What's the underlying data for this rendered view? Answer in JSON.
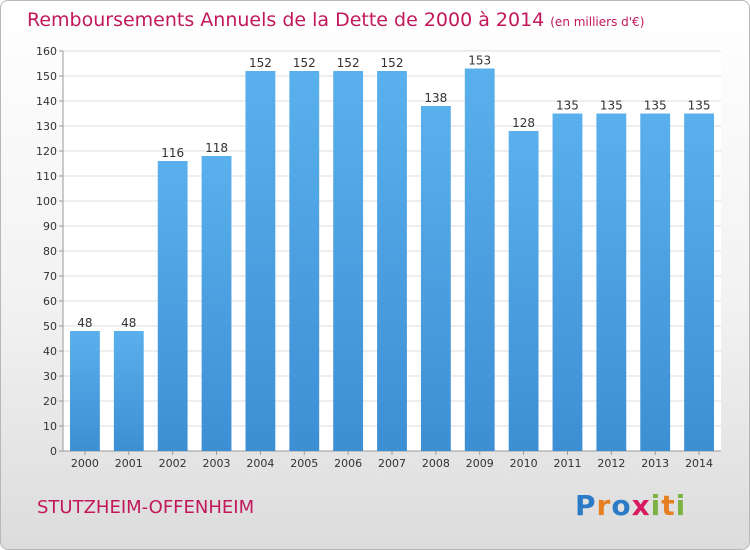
{
  "chart_data": {
    "type": "bar",
    "title": "Remboursements Annuels de la Dette de 2000 à 2014",
    "unit_note": "(en milliers d'€)",
    "categories": [
      "2000",
      "2001",
      "2002",
      "2003",
      "2004",
      "2005",
      "2006",
      "2007",
      "2008",
      "2009",
      "2010",
      "2011",
      "2012",
      "2013",
      "2014"
    ],
    "values": [
      48,
      48,
      116,
      118,
      152,
      152,
      152,
      152,
      138,
      153,
      128,
      135,
      135,
      135,
      135
    ],
    "ylim": [
      0,
      160
    ],
    "yticks": [
      0,
      10,
      20,
      30,
      40,
      50,
      60,
      70,
      80,
      90,
      100,
      110,
      120,
      130,
      140,
      150,
      160
    ],
    "xlabel": "",
    "ylabel": "",
    "grid": true,
    "bar_color": "#3d8fd4"
  },
  "commune": "STUTZHEIM-OFFENHEIM",
  "logo": {
    "text": "Proxiti",
    "letters": [
      {
        "char": "P",
        "color": "#2b7bc7"
      },
      {
        "char": "r",
        "color": "#e67e22"
      },
      {
        "char": "o",
        "color": "#2b7bc7"
      },
      {
        "char": "x",
        "color": "#d81b60"
      },
      {
        "char": "i",
        "color": "#7cb342"
      },
      {
        "char": "t",
        "color": "#e67e22"
      },
      {
        "char": "i",
        "color": "#7cb342"
      }
    ]
  }
}
